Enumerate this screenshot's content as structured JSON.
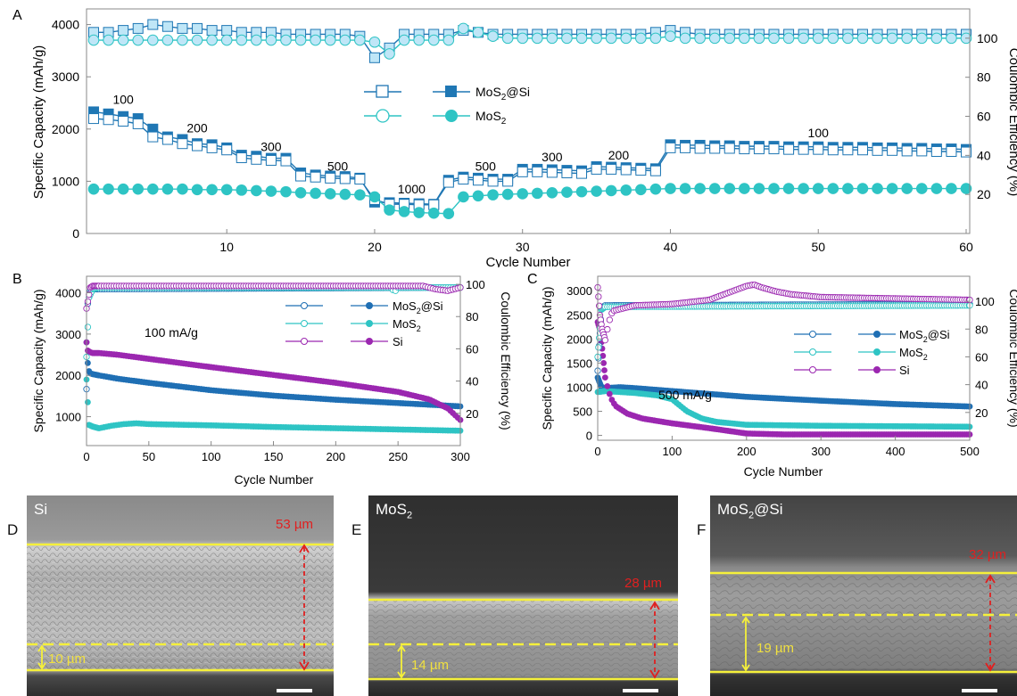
{
  "chart_data": [
    {
      "panel": "A",
      "type": "line",
      "xlabel": "Cycle Number",
      "ylabel": "Specific Capacity (mAh/g)",
      "ylabel_right": "Coulombic Efficiency (%)",
      "xlim": [
        1,
        60
      ],
      "ylim": [
        0,
        4300
      ],
      "ylim_right": [
        0,
        115
      ],
      "xticks": [
        "10",
        "20",
        "30",
        "40",
        "50",
        "60"
      ],
      "yticks": [
        "0",
        "1000",
        "2000",
        "3000",
        "4000"
      ],
      "yticks_right": [
        "20",
        "40",
        "60",
        "80",
        "100"
      ],
      "rate_labels": [
        {
          "text": "100",
          "x": 3,
          "y": 2480
        },
        {
          "text": "200",
          "x": 8,
          "y": 1940
        },
        {
          "text": "300",
          "x": 13,
          "y": 1580
        },
        {
          "text": "500",
          "x": 17.5,
          "y": 1200
        },
        {
          "text": "1000",
          "x": 22.5,
          "y": 770
        },
        {
          "text": "500",
          "x": 27.5,
          "y": 1200
        },
        {
          "text": "300",
          "x": 32,
          "y": 1380
        },
        {
          "text": "200",
          "x": 36.5,
          "y": 1420
        },
        {
          "text": "100",
          "x": 50,
          "y": 1840
        }
      ],
      "legend": {
        "items": [
          "MoS2@Si",
          "MoS2"
        ]
      },
      "series": [
        {
          "name": "MoS2@Si",
          "kind": "charge",
          "axis": "left",
          "color": "#1f77b4",
          "y": [
            2330,
            2290,
            2240,
            2200,
            2000,
            1850,
            1800,
            1720,
            1700,
            1640,
            1500,
            1480,
            1440,
            1440,
            1160,
            1120,
            1100,
            1090,
            1060,
            600,
            590,
            580,
            570,
            560,
            1020,
            1080,
            1060,
            1040,
            1040,
            1230,
            1230,
            1220,
            1210,
            1200,
            1280,
            1270,
            1260,
            1250,
            1240,
            1700,
            1690,
            1690,
            1680,
            1680,
            1670,
            1670,
            1670,
            1660,
            1660,
            1660,
            1650,
            1650,
            1650,
            1640,
            1640,
            1630,
            1630,
            1620,
            1620,
            1610
          ]
        },
        {
          "name": "MoS2@Si",
          "kind": "discharge",
          "axis": "left",
          "color": "#1f77b4",
          "y": [
            2200,
            2180,
            2150,
            2100,
            1850,
            1800,
            1720,
            1680,
            1640,
            1600,
            1450,
            1420,
            1400,
            1390,
            1100,
            1080,
            1060,
            1050,
            1040,
            650,
            560,
            560,
            550,
            550,
            980,
            1040,
            1020,
            1000,
            1000,
            1180,
            1180,
            1170,
            1160,
            1150,
            1230,
            1230,
            1220,
            1210,
            1200,
            1640,
            1640,
            1630,
            1630,
            1630,
            1620,
            1620,
            1620,
            1610,
            1610,
            1610,
            1600,
            1600,
            1600,
            1590,
            1590,
            1580,
            1580,
            1570,
            1570,
            1560
          ]
        },
        {
          "name": "MoS2",
          "kind": "capacity",
          "axis": "left",
          "color": "#2ec4c4",
          "y": [
            850,
            850,
            850,
            850,
            850,
            850,
            850,
            840,
            840,
            840,
            830,
            820,
            810,
            800,
            780,
            770,
            760,
            750,
            740,
            700,
            450,
            420,
            400,
            390,
            380,
            700,
            720,
            740,
            750,
            760,
            770,
            780,
            790,
            800,
            810,
            820,
            830,
            840,
            850,
            860,
            860,
            860,
            860,
            860,
            860,
            860,
            860,
            860,
            860,
            860,
            860,
            860,
            860,
            860,
            860,
            860,
            860,
            860,
            860,
            860
          ]
        },
        {
          "name": "MoS2@Si",
          "kind": "CE",
          "axis": "right",
          "color": "#1f77b4",
          "y": [
            103,
            103,
            104,
            105,
            107,
            106,
            105,
            105,
            104,
            104,
            103,
            103,
            103,
            102,
            102,
            102,
            102,
            102,
            101,
            90,
            95,
            102,
            102,
            102,
            102,
            104,
            103,
            102,
            102,
            102,
            102,
            102,
            102,
            102,
            102,
            102,
            102,
            102,
            103,
            104,
            103,
            102,
            102,
            102,
            102,
            102,
            102,
            102,
            102,
            102,
            102,
            102,
            102,
            102,
            102,
            102,
            102,
            102,
            102,
            102
          ]
        },
        {
          "name": "MoS2",
          "kind": "CE",
          "axis": "right",
          "color": "#2ec4c4",
          "y": [
            99,
            99,
            99,
            99,
            99,
            99,
            99,
            99,
            99,
            99,
            99,
            99,
            99,
            99,
            99,
            99,
            99,
            99,
            99,
            98,
            92,
            99,
            99,
            99,
            99,
            105,
            103,
            101,
            100,
            100,
            100,
            100,
            100,
            100,
            100,
            100,
            100,
            100,
            100,
            101,
            100,
            100,
            100,
            100,
            100,
            100,
            100,
            100,
            100,
            100,
            100,
            100,
            100,
            100,
            100,
            100,
            100,
            100,
            100,
            100
          ]
        }
      ]
    },
    {
      "panel": "B",
      "type": "line",
      "xlabel": "Cycle Number",
      "ylabel": "Specific Capacity (mAh/g)",
      "ylabel_right": "Coulombic Efficiency (%)",
      "xlim": [
        0,
        300
      ],
      "ylim": [
        300,
        4400
      ],
      "ylim_right": [
        0,
        105
      ],
      "xticks": [
        "0",
        "50",
        "100",
        "150",
        "200",
        "250",
        "300"
      ],
      "yticks": [
        "1000",
        "2000",
        "3000",
        "4000"
      ],
      "yticks_right": [
        "20",
        "40",
        "60",
        "80",
        "100"
      ],
      "annotation": "100 mA/g",
      "legend": {
        "items": [
          "MoS2@Si",
          "MoS2",
          "Si"
        ]
      },
      "series": [
        {
          "name": "MoS2@Si",
          "axis": "left",
          "color": "#1f6fb4",
          "x": [
            0,
            1,
            2,
            3,
            5,
            10,
            25,
            50,
            100,
            150,
            200,
            250,
            300
          ],
          "y": [
            2800,
            2300,
            2100,
            2050,
            2030,
            2000,
            1920,
            1820,
            1640,
            1510,
            1410,
            1330,
            1250
          ]
        },
        {
          "name": "MoS2",
          "axis": "left",
          "color": "#2ec4c4",
          "x": [
            0,
            2,
            5,
            10,
            20,
            30,
            40,
            50,
            100,
            150,
            200,
            250,
            300
          ],
          "y": [
            1900,
            800,
            760,
            720,
            780,
            820,
            840,
            820,
            790,
            750,
            720,
            690,
            660
          ]
        },
        {
          "name": "Si",
          "axis": "left",
          "color": "#9b27b0",
          "x": [
            0,
            1,
            3,
            5,
            10,
            25,
            50,
            100,
            150,
            200,
            250,
            275,
            290,
            300
          ],
          "y": [
            2800,
            2600,
            2560,
            2540,
            2540,
            2500,
            2400,
            2200,
            2010,
            1820,
            1600,
            1420,
            1200,
            920
          ]
        },
        {
          "name": "MoS2@Si",
          "axis": "right",
          "color": "#1f6fb4",
          "x": [
            0,
            1,
            3,
            5,
            300
          ],
          "y": [
            35,
            88,
            96,
            97,
            98
          ]
        },
        {
          "name": "MoS2",
          "axis": "right",
          "color": "#2ec4c4",
          "x": [
            0,
            2,
            5,
            10,
            245,
            247,
            250,
            300
          ],
          "y": [
            55,
            92,
            97,
            98,
            98,
            95,
            98,
            98
          ]
        },
        {
          "name": "Si",
          "axis": "right",
          "color": "#9b27b0",
          "x": [
            0,
            3,
            5,
            270,
            280,
            290,
            300
          ],
          "y": [
            85,
            98,
            99,
            99,
            97,
            96,
            98
          ]
        }
      ]
    },
    {
      "panel": "C",
      "type": "line",
      "xlabel": "Cycle Number",
      "ylabel": "Specific Capacity (mAh/g)",
      "ylabel_right": "Coulombic Efficiency (%)",
      "xlim": [
        0,
        500
      ],
      "ylim": [
        -100,
        3300
      ],
      "ylim_right": [
        0,
        118
      ],
      "xticks": [
        "0",
        "100",
        "200",
        "300",
        "400",
        "500"
      ],
      "yticks": [
        "0",
        "500",
        "1000",
        "1500",
        "2000",
        "2500",
        "3000"
      ],
      "yticks_right": [
        "20",
        "40",
        "60",
        "80",
        "100"
      ],
      "annotation": "500 mA/g",
      "legend": {
        "items": [
          "MoS2@Si",
          "MoS2",
          "Si"
        ]
      },
      "series": [
        {
          "name": "MoS2@Si",
          "axis": "left",
          "color": "#1f6fb4",
          "x": [
            0,
            5,
            10,
            30,
            50,
            100,
            150,
            200,
            300,
            400,
            500
          ],
          "y": [
            1200,
            1000,
            980,
            1000,
            980,
            920,
            860,
            800,
            720,
            650,
            600
          ]
        },
        {
          "name": "MoS2",
          "axis": "left",
          "color": "#2ec4c4",
          "x": [
            0,
            10,
            30,
            50,
            80,
            100,
            120,
            140,
            160,
            200,
            300,
            400,
            500
          ],
          "y": [
            900,
            920,
            900,
            880,
            830,
            750,
            500,
            350,
            280,
            220,
            200,
            190,
            180
          ]
        },
        {
          "name": "Si",
          "axis": "left",
          "color": "#9b27b0",
          "x": [
            0,
            3,
            6,
            10,
            15,
            20,
            25,
            40,
            60,
            100,
            150,
            200,
            250,
            300,
            500
          ],
          "y": [
            2350,
            2200,
            1800,
            1200,
            900,
            700,
            600,
            450,
            350,
            250,
            150,
            40,
            20,
            20,
            20
          ]
        },
        {
          "name": "MoS2@Si",
          "axis": "right",
          "color": "#1f6fb4",
          "x": [
            0,
            5,
            10,
            500
          ],
          "y": [
            50,
            95,
            97,
            98
          ]
        },
        {
          "name": "MoS2",
          "axis": "right",
          "color": "#2ec4c4",
          "x": [
            0,
            5,
            10,
            500
          ],
          "y": [
            60,
            94,
            96,
            97
          ]
        },
        {
          "name": "Si",
          "axis": "right",
          "color": "#9b27b0",
          "x": [
            0,
            3,
            6,
            10,
            15,
            20,
            50,
            100,
            150,
            180,
            200,
            210,
            220,
            240,
            260,
            300,
            400,
            500
          ],
          "y": [
            110,
            90,
            80,
            72,
            85,
            93,
            97,
            98,
            101,
            107,
            111,
            112,
            110,
            107,
            105,
            103,
            102,
            101
          ]
        }
      ]
    }
  ],
  "sem_panels": [
    {
      "letter": "D",
      "label": "Si",
      "thick_label": "53 µm",
      "thin_label": "10 µm"
    },
    {
      "letter": "E",
      "label_main": "MoS",
      "label_sub": "2",
      "thick_label": "28 µm",
      "thin_label": "14 µm"
    },
    {
      "letter": "F",
      "label_main": "MoS",
      "label_sub": "2",
      "label_tail": "@Si",
      "thick_label": "32 µm",
      "thin_label": "19 µm"
    }
  ]
}
